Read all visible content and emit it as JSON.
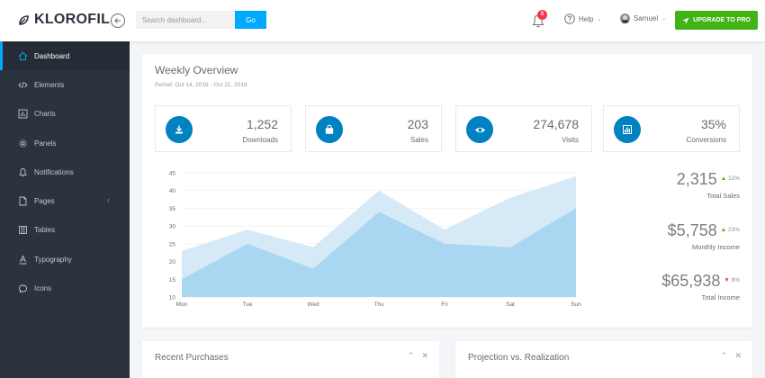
{
  "navbar": {
    "brand": "KLOROFIL",
    "search_placeholder": "Search dashboard...",
    "search_button": "Go",
    "notification_count": "5",
    "help_label": "Help",
    "user_name": "Samuel",
    "upgrade_label": "UPGRADE TO PRO"
  },
  "sidebar": {
    "items": [
      {
        "label": "Dashboard",
        "icon": "home-icon"
      },
      {
        "label": "Elements",
        "icon": "code-icon"
      },
      {
        "label": "Charts",
        "icon": "chart-bars-icon"
      },
      {
        "label": "Panels",
        "icon": "cog-icon"
      },
      {
        "label": "Notifications",
        "icon": "bell-icon"
      },
      {
        "label": "Pages",
        "icon": "file-icon"
      },
      {
        "label": "Tables",
        "icon": "table-icon"
      },
      {
        "label": "Typography",
        "icon": "text-format-icon"
      },
      {
        "label": "Icons",
        "icon": "linearicons-icon"
      }
    ]
  },
  "overview": {
    "title": "Weekly Overview",
    "period": "Period: Oct 14, 2016 - Oct 21, 2016",
    "metrics": [
      {
        "value": "1,252",
        "label": "Downloads",
        "icon": "download-icon"
      },
      {
        "value": "203",
        "label": "Sales",
        "icon": "shopping-bag-icon"
      },
      {
        "value": "274,678",
        "label": "Visits",
        "icon": "eye-icon"
      },
      {
        "value": "35%",
        "label": "Conversions",
        "icon": "bar-chart-icon"
      }
    ],
    "stats": [
      {
        "value": "2,315",
        "change": "12%",
        "direction": "up",
        "label": "Total Sales"
      },
      {
        "value": "$5,758",
        "change": "23%",
        "direction": "up",
        "label": "Monthly Income"
      },
      {
        "value": "$65,938",
        "change": "8%",
        "direction": "down",
        "label": "Total Income"
      }
    ]
  },
  "chart_data": {
    "type": "area",
    "categories": [
      "Mon",
      "Tue",
      "Wed",
      "Thu",
      "Fri",
      "Sat",
      "Sun"
    ],
    "ylim": [
      10,
      45
    ],
    "yticks": [
      10,
      15,
      20,
      25,
      30,
      35,
      40,
      45
    ],
    "series": [
      {
        "values": [
          23,
          29,
          24,
          40,
          29,
          38,
          44
        ],
        "color": "#d3e9f6"
      },
      {
        "values": [
          15,
          25,
          18,
          34,
          25,
          24,
          35
        ],
        "color": "#a7d6f0"
      }
    ]
  },
  "bottom_panels": [
    {
      "title": "Recent Purchases"
    },
    {
      "title": "Projection vs. Realization"
    }
  ],
  "colors": {
    "accent": "#00aaff",
    "sidebar_bg": "#2b333e",
    "metric_icon_bg": "#0081c2",
    "upgrade_bg": "#41b314",
    "badge": "#f9354c"
  }
}
